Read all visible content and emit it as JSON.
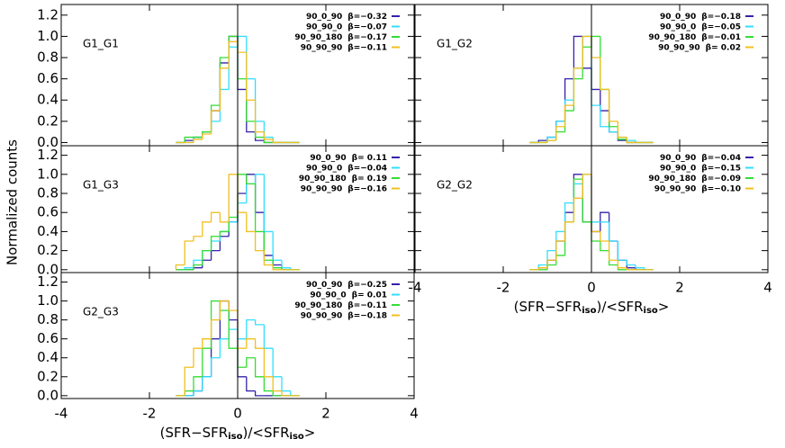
{
  "ylabel": "Normalized counts",
  "chart_data": [
    {
      "type": "histogram",
      "label": "G1_G1",
      "xlim": [
        -4,
        4
      ],
      "ylim": [
        -0.03,
        1.3
      ],
      "xticks": [
        -4,
        -2,
        0,
        2,
        4
      ],
      "xtick_labels": false,
      "yticks": [
        {
          "value": 0,
          "label": "0.0"
        },
        {
          "value": 0.2,
          "label": "0.2"
        },
        {
          "value": 0.4,
          "label": "0.4"
        },
        {
          "value": 0.6,
          "label": "0.6"
        },
        {
          "value": 0.8,
          "label": "0.8"
        },
        {
          "value": 1.0,
          "label": "1.0"
        },
        {
          "value": 1.2,
          "label": "1.2"
        }
      ],
      "legend": "upper right",
      "bins": [
        -1.4,
        -1.2,
        -1.0,
        -0.8,
        -0.6,
        -0.4,
        -0.2,
        0,
        0.2,
        0.4,
        0.6,
        0.8,
        1.0,
        1.2,
        1.4
      ],
      "series": [
        {
          "name": "90_0_90",
          "beta_label": "β=−0.32",
          "color": "#3322aa",
          "values": [
            0,
            0.02,
            0.05,
            0.1,
            0.3,
            0.75,
            1.0,
            0.5,
            0.1,
            0.02,
            0,
            0,
            0,
            0
          ]
        },
        {
          "name": "90_90_0",
          "beta_label": "β=−0.07",
          "color": "#33ddff",
          "values": [
            0,
            0,
            0.05,
            0.1,
            0.2,
            0.5,
            0.9,
            1.0,
            0.6,
            0.2,
            0.05,
            0,
            0,
            0
          ]
        },
        {
          "name": "90_90_180",
          "beta_label": "β=−0.17",
          "color": "#33dd33",
          "values": [
            0,
            0.05,
            0.05,
            0.1,
            0.35,
            0.8,
            1.0,
            0.6,
            0.2,
            0.05,
            0,
            0,
            0,
            0
          ]
        },
        {
          "name": "90_90_90",
          "beta_label": "β=−0.11",
          "color": "#f0c020",
          "values": [
            0,
            0,
            0.03,
            0.08,
            0.3,
            0.7,
            0.95,
            0.85,
            0.4,
            0.1,
            0.03,
            0,
            0,
            0
          ]
        }
      ]
    },
    {
      "type": "histogram",
      "label": "G1_G2",
      "xlim": [
        -4,
        4
      ],
      "ylim": [
        -0.03,
        1.3
      ],
      "xticks": [
        -4,
        -2,
        0,
        2,
        4
      ],
      "xtick_labels": false,
      "yticks": [
        {
          "value": 0,
          "label": "0.0"
        },
        {
          "value": 0.2,
          "label": "0.2"
        },
        {
          "value": 0.4,
          "label": "0.4"
        },
        {
          "value": 0.6,
          "label": "0.6"
        },
        {
          "value": 0.8,
          "label": "0.8"
        },
        {
          "value": 1.0,
          "label": "1.0"
        },
        {
          "value": 1.2,
          "label": "1.2"
        }
      ],
      "legend": "upper right",
      "bins": [
        -1.4,
        -1.2,
        -1.0,
        -0.8,
        -0.6,
        -0.4,
        -0.2,
        0,
        0.2,
        0.4,
        0.6,
        0.8,
        1.0,
        1.2,
        1.4
      ],
      "series": [
        {
          "name": "90_0_90",
          "beta_label": "β=−0.18",
          "color": "#3322aa",
          "values": [
            0,
            0.02,
            0.05,
            0.2,
            0.6,
            1.0,
            0.7,
            0.5,
            0.3,
            0.1,
            0.02,
            0,
            0,
            0
          ]
        },
        {
          "name": "90_90_0",
          "beta_label": "β=−0.05",
          "color": "#33ddff",
          "values": [
            0,
            0,
            0.05,
            0.2,
            0.4,
            0.7,
            1.0,
            0.35,
            0.15,
            0.1,
            0.05,
            0.02,
            0,
            0
          ]
        },
        {
          "name": "90_90_180",
          "beta_label": "β=−0.01",
          "color": "#33dd33",
          "values": [
            0,
            0,
            0.02,
            0.1,
            0.3,
            0.6,
            0.9,
            1.0,
            0.5,
            0.15,
            0.03,
            0,
            0,
            0
          ]
        },
        {
          "name": "90_90_90",
          "beta_label": "β= 0.02",
          "color": "#f0c020",
          "values": [
            0,
            0,
            0.02,
            0.15,
            0.35,
            0.7,
            1.0,
            0.8,
            0.5,
            0.2,
            0.05,
            0,
            0,
            0
          ]
        }
      ]
    },
    {
      "type": "histogram",
      "label": "G1_G3",
      "xlim": [
        -4,
        4
      ],
      "ylim": [
        -0.03,
        1.3
      ],
      "xticks": [
        -4,
        -2,
        0,
        2,
        4
      ],
      "xtick_labels": false,
      "yticks": [
        {
          "value": 0,
          "label": "0.0"
        },
        {
          "value": 0.2,
          "label": "0.2"
        },
        {
          "value": 0.4,
          "label": "0.4"
        },
        {
          "value": 0.6,
          "label": "0.6"
        },
        {
          "value": 0.8,
          "label": "0.8"
        },
        {
          "value": 1.0,
          "label": "1.0"
        },
        {
          "value": 1.2,
          "label": "1.2"
        }
      ],
      "legend": "upper right",
      "bins": [
        -1.4,
        -1.2,
        -1.0,
        -0.8,
        -0.6,
        -0.4,
        -0.2,
        0,
        0.2,
        0.4,
        0.6,
        0.8,
        1.0,
        1.2,
        1.4
      ],
      "series": [
        {
          "name": "90_0_90",
          "beta_label": "β= 0.11",
          "color": "#3322aa",
          "values": [
            0,
            0,
            0.02,
            0.1,
            0.2,
            0.35,
            0.5,
            0.8,
            1.0,
            0.6,
            0.15,
            0.05,
            0,
            0
          ]
        },
        {
          "name": "90_90_0",
          "beta_label": "β=−0.04",
          "color": "#33ddff",
          "values": [
            0,
            0.02,
            0.1,
            0.2,
            0.3,
            0.4,
            0.5,
            0.7,
            0.9,
            1.0,
            0.4,
            0.1,
            0.02,
            0
          ]
        },
        {
          "name": "90_90_180",
          "beta_label": "β= 0.19",
          "color": "#33dd33",
          "values": [
            0,
            0,
            0.05,
            0.2,
            0.35,
            0.4,
            0.55,
            1.0,
            0.9,
            0.4,
            0.1,
            0.02,
            0,
            0
          ]
        },
        {
          "name": "90_90_90",
          "beta_label": "β=−0.16",
          "color": "#f0c020",
          "values": [
            0.05,
            0.3,
            0.35,
            0.5,
            0.6,
            0.5,
            1.0,
            0.6,
            0.4,
            0.2,
            0.05,
            0,
            0,
            0
          ]
        }
      ]
    },
    {
      "type": "histogram",
      "label": "G2_G2",
      "xlim": [
        -4,
        4
      ],
      "ylim": [
        -0.03,
        1.3
      ],
      "xticks": [
        -4,
        -2,
        0,
        2,
        4
      ],
      "xtick_labels": true,
      "xlabel": [
        "(SFR−SFR",
        "iso",
        ")/<SFR",
        "iso",
        ">"
      ],
      "yticks": [
        {
          "value": 0,
          "label": "0.0"
        },
        {
          "value": 0.2,
          "label": "0.2"
        },
        {
          "value": 0.4,
          "label": "0.4"
        },
        {
          "value": 0.6,
          "label": "0.6"
        },
        {
          "value": 0.8,
          "label": "0.8"
        },
        {
          "value": 1.0,
          "label": "1.0"
        },
        {
          "value": 1.2,
          "label": "1.2"
        }
      ],
      "legend": "upper right",
      "bins": [
        -1.4,
        -1.2,
        -1.0,
        -0.8,
        -0.6,
        -0.4,
        -0.2,
        0,
        0.2,
        0.4,
        0.6,
        0.8,
        1.0,
        1.2,
        1.4
      ],
      "series": [
        {
          "name": "90_0_90",
          "beta_label": "β=−0.04",
          "color": "#3322aa",
          "values": [
            0,
            0.02,
            0.1,
            0.3,
            0.6,
            1.0,
            0.5,
            0.4,
            0.6,
            0.3,
            0.1,
            0.02,
            0,
            0
          ]
        },
        {
          "name": "90_90_0",
          "beta_label": "β=−0.15",
          "color": "#33ddff",
          "values": [
            0,
            0.05,
            0.2,
            0.4,
            0.7,
            0.9,
            1.0,
            0.5,
            0.5,
            0.3,
            0.1,
            0.05,
            0.02,
            0
          ]
        },
        {
          "name": "90_90_180",
          "beta_label": "β=−0.09",
          "color": "#33dd33",
          "values": [
            0,
            0,
            0.05,
            0.15,
            0.5,
            0.95,
            0.5,
            0.3,
            0.2,
            0.05,
            0,
            0,
            0,
            0
          ]
        },
        {
          "name": "90_90_90",
          "beta_label": "β=−0.10",
          "color": "#f0c020",
          "values": [
            0,
            0.02,
            0.1,
            0.3,
            0.5,
            0.75,
            1.0,
            0.4,
            0.3,
            0.1,
            0.02,
            0,
            0,
            0
          ]
        }
      ]
    },
    {
      "type": "histogram",
      "label": "G2_G3",
      "xlim": [
        -4,
        4
      ],
      "ylim": [
        -0.03,
        1.3
      ],
      "xticks": [
        -4,
        -2,
        0,
        2,
        4
      ],
      "xtick_labels": true,
      "xlabel": [
        "(SFR−SFR",
        "iso",
        ")/<SFR",
        "iso",
        ">"
      ],
      "yticks": [
        {
          "value": 0,
          "label": "0.0"
        },
        {
          "value": 0.2,
          "label": "0.2"
        },
        {
          "value": 0.4,
          "label": "0.4"
        },
        {
          "value": 0.6,
          "label": "0.6"
        },
        {
          "value": 0.8,
          "label": "0.8"
        },
        {
          "value": 1.0,
          "label": "1.0"
        },
        {
          "value": 1.2,
          "label": "1.2"
        }
      ],
      "legend": "upper right",
      "bins": [
        -1.4,
        -1.2,
        -1.0,
        -0.8,
        -0.6,
        -0.4,
        -0.2,
        0,
        0.2,
        0.4,
        0.6,
        0.8,
        1.0,
        1.2,
        1.4
      ],
      "series": [
        {
          "name": "90_0_90",
          "beta_label": "β=−0.25",
          "color": "#3322aa",
          "values": [
            0,
            0,
            0.05,
            0.2,
            0.6,
            1.0,
            0.8,
            0.2,
            0.05,
            0,
            0,
            0,
            0,
            0
          ]
        },
        {
          "name": "90_90_0",
          "beta_label": "β= 0.01",
          "color": "#33ddff",
          "values": [
            0,
            0,
            0.05,
            0.2,
            0.4,
            0.6,
            0.7,
            0.6,
            0.8,
            0.75,
            0.5,
            0.2,
            0.05,
            0
          ]
        },
        {
          "name": "90_90_180",
          "beta_label": "β=−0.11",
          "color": "#33dd33",
          "values": [
            0,
            0.05,
            0.2,
            0.5,
            1.0,
            0.9,
            0.5,
            0.3,
            0.4,
            0.2,
            0.05,
            0,
            0,
            0
          ]
        },
        {
          "name": "90_90_90",
          "beta_label": "β=−0.18",
          "color": "#f0c020",
          "values": [
            0,
            0.3,
            0.5,
            0.6,
            0.8,
            1.0,
            0.9,
            0.5,
            0.6,
            0.5,
            0.2,
            0.05,
            0,
            0
          ]
        }
      ]
    }
  ]
}
